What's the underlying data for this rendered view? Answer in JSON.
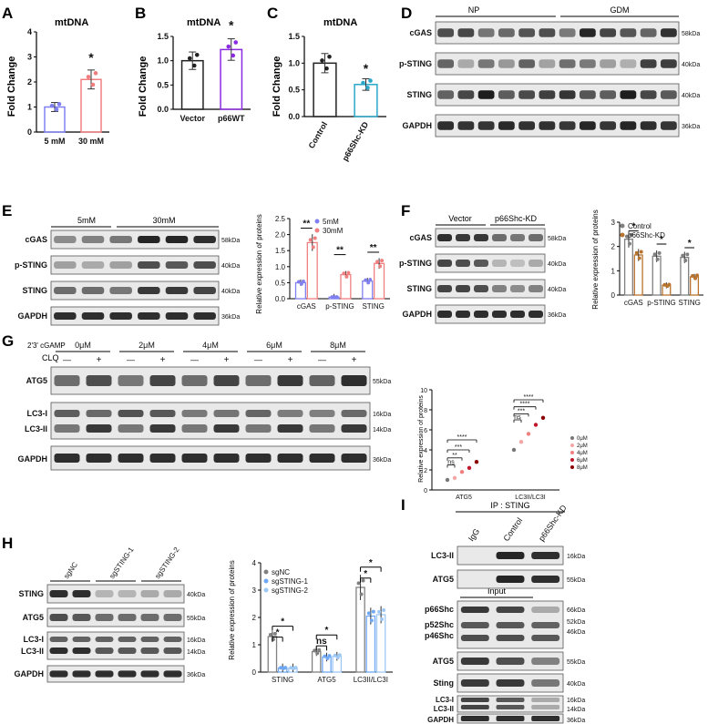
{
  "panels": {
    "A": {
      "letter": "A",
      "title": "mtDNA",
      "ylabel": "Fold Change",
      "yticks": [
        "0",
        "1",
        "2",
        "3",
        "4"
      ],
      "categories": [
        "5 mM",
        "30 mM"
      ],
      "sig": "*"
    },
    "B": {
      "letter": "B",
      "title": "mtDNA",
      "ylabel": "Fold Change",
      "yticks": [
        "0.0",
        "0.5",
        "1.0",
        "1.5"
      ],
      "categories": [
        "Vector",
        "p66WT"
      ],
      "sig": "*"
    },
    "C": {
      "letter": "C",
      "title": "mtDNA",
      "ylabel": "Fold Change",
      "yticks": [
        "0.0",
        "0.5",
        "1.0",
        "1.5"
      ],
      "categories": [
        "Control",
        "p66Shc-KD"
      ],
      "sig": "*"
    },
    "D": {
      "letter": "D",
      "groups": [
        "NP",
        "GDM"
      ],
      "rows": [
        "cGAS",
        "p-STING",
        "STING",
        "GAPDH"
      ],
      "kda": [
        "58kDa",
        "40kDa",
        "40kDa",
        "36kDa"
      ]
    },
    "E": {
      "letter": "E",
      "groups": [
        "5mM",
        "30mM"
      ],
      "rows": [
        "cGAS",
        "p-STING",
        "STING",
        "GAPDH"
      ],
      "kda": [
        "58kDa",
        "40kDa",
        "40kDa",
        "36kDa"
      ],
      "ylabel": "Relative expression of proteins",
      "yticks": [
        "0.0",
        "0.5",
        "1.0",
        "1.5",
        "2.0",
        "2.5"
      ],
      "sig": [
        "**",
        "**",
        "**"
      ]
    },
    "F": {
      "letter": "F",
      "groups": [
        "Vector",
        "p66Shc-KD"
      ],
      "rows": [
        "cGAS",
        "p-STING",
        "STING",
        "GAPDH"
      ],
      "kda": [
        "58kDa",
        "40kDa",
        "40kDa",
        "36kDa"
      ],
      "ylabel": "Relative expression of proteins",
      "yticks": [
        "0",
        "1",
        "2",
        "3"
      ],
      "sig": [
        "*",
        "*",
        "*"
      ]
    },
    "G": {
      "letter": "G",
      "treatment": "2'3' cGAMP",
      "clq": "CLQ",
      "doses": [
        "0μM",
        "2μM",
        "4μM",
        "6μM",
        "8μM"
      ],
      "minus": "—",
      "plus": "+",
      "rows": [
        "ATG5",
        "LC3-I",
        "LC3-II",
        "GAPDH"
      ],
      "kda": [
        "55kDa",
        "16kDa",
        "14kDa",
        "36kDa"
      ],
      "ylabel": "Relative expression of proteins",
      "yticks": [
        "0",
        "2",
        "4",
        "6",
        "8",
        "10"
      ],
      "sig": [
        "ns",
        "**",
        "***",
        "****",
        "ns",
        "***",
        "****",
        "****"
      ]
    },
    "H": {
      "letter": "H",
      "groups": [
        "sgNC",
        "sgSTING-1",
        "sgSTING-2"
      ],
      "rows": [
        "STING",
        "ATG5",
        "LC3-I",
        "LC3-II",
        "GAPDH"
      ],
      "kda": [
        "40kDa",
        "55kDa",
        "16kDa",
        "14kDa",
        "36kDa"
      ],
      "ylabel": "Relative expression of proteins",
      "yticks": [
        "0",
        "1",
        "2",
        "3",
        "4"
      ],
      "sig": [
        "*",
        "*",
        "ns",
        "*",
        "*",
        "*"
      ]
    },
    "I": {
      "letter": "I",
      "ip": "IP : STING",
      "lanes": [
        "IgG",
        "Control",
        "p66Shc-KD"
      ],
      "ip_rows": [
        "LC3-II",
        "ATG5"
      ],
      "ip_kda": [
        "16kDa",
        "55kDa"
      ],
      "input": "Input",
      "input_rows": [
        "p66Shc",
        "p52Shc",
        "p46Shc",
        "ATG5",
        "Sting",
        "LC3-I",
        "LC3-II",
        "GAPDH"
      ],
      "input_kda": [
        "66kDa",
        "52kDa",
        "46kDa",
        "55kDa",
        "40kDa",
        "16kDa",
        "14kDa",
        "36kDa"
      ]
    }
  },
  "colors": {
    "red": "#f08080",
    "blue": "#8080f0",
    "purple": "#8a2be2",
    "teal": "#2aa7c9",
    "gray": "#808080",
    "brown": "#b8732e",
    "lightblue": "#6fa8f5",
    "paleblue": "#9fc8f5",
    "lightpink": "#f4a6a6",
    "darkred": "#c0162c"
  },
  "chart_data": [
    {
      "type": "bar",
      "title": "mtDNA",
      "ylabel": "Fold Change",
      "categories": [
        "5 mM",
        "30 mM"
      ],
      "values": [
        1.0,
        2.1
      ],
      "ylim": [
        0,
        4
      ]
    },
    {
      "type": "bar",
      "title": "mtDNA",
      "ylabel": "Fold Change",
      "categories": [
        "Vector",
        "p66WT"
      ],
      "values": [
        1.0,
        1.23
      ],
      "ylim": [
        0,
        1.5
      ]
    },
    {
      "type": "bar",
      "title": "mtDNA",
      "ylabel": "Fold Change",
      "categories": [
        "Control",
        "p66Shc-KD"
      ],
      "values": [
        1.0,
        0.6
      ],
      "ylim": [
        0,
        1.5
      ]
    },
    {
      "type": "bar",
      "ylabel": "Relative expression of proteins",
      "categories": [
        "cGAS",
        "p-STING",
        "STING"
      ],
      "series": [
        {
          "name": "5mM",
          "values": [
            0.5,
            0.05,
            0.55
          ]
        },
        {
          "name": "30mM",
          "values": [
            1.75,
            0.75,
            1.1
          ]
        }
      ],
      "ylim": [
        0,
        2.5
      ],
      "legend": "top-right"
    },
    {
      "type": "bar",
      "ylabel": "Relative expression of proteins",
      "categories": [
        "cGAS",
        "p-STING",
        "STING"
      ],
      "series": [
        {
          "name": "Control",
          "values": [
            2.3,
            1.6,
            1.55
          ]
        },
        {
          "name": "p66Shc-KD",
          "values": [
            1.65,
            0.4,
            0.75
          ]
        }
      ],
      "ylim": [
        0,
        3
      ],
      "legend": "top-right"
    },
    {
      "type": "scatter",
      "ylabel": "Relative expression of proteins",
      "categories": [
        "ATG5",
        "LC3II/LC3I"
      ],
      "series": [
        {
          "name": "0μM",
          "values": [
            1.0,
            4.0
          ]
        },
        {
          "name": "2μM",
          "values": [
            1.2,
            4.8
          ]
        },
        {
          "name": "4μM",
          "values": [
            1.8,
            5.6
          ]
        },
        {
          "name": "6μM",
          "values": [
            2.2,
            6.5
          ]
        },
        {
          "name": "8μM",
          "values": [
            2.8,
            7.2
          ]
        }
      ],
      "ylim": [
        0,
        10
      ],
      "legend": "right"
    },
    {
      "type": "bar",
      "ylabel": "Relative expression of proteins",
      "categories": [
        "STING",
        "ATG5",
        "LC3II/LC3I"
      ],
      "series": [
        {
          "name": "sgNC",
          "values": [
            1.3,
            0.75,
            3.1
          ]
        },
        {
          "name": "sgSTING-1",
          "values": [
            0.15,
            0.55,
            2.05
          ]
        },
        {
          "name": "sgSTING-2",
          "values": [
            0.15,
            0.58,
            2.1
          ]
        }
      ],
      "ylim": [
        0,
        4
      ],
      "legend": "top-left"
    }
  ]
}
